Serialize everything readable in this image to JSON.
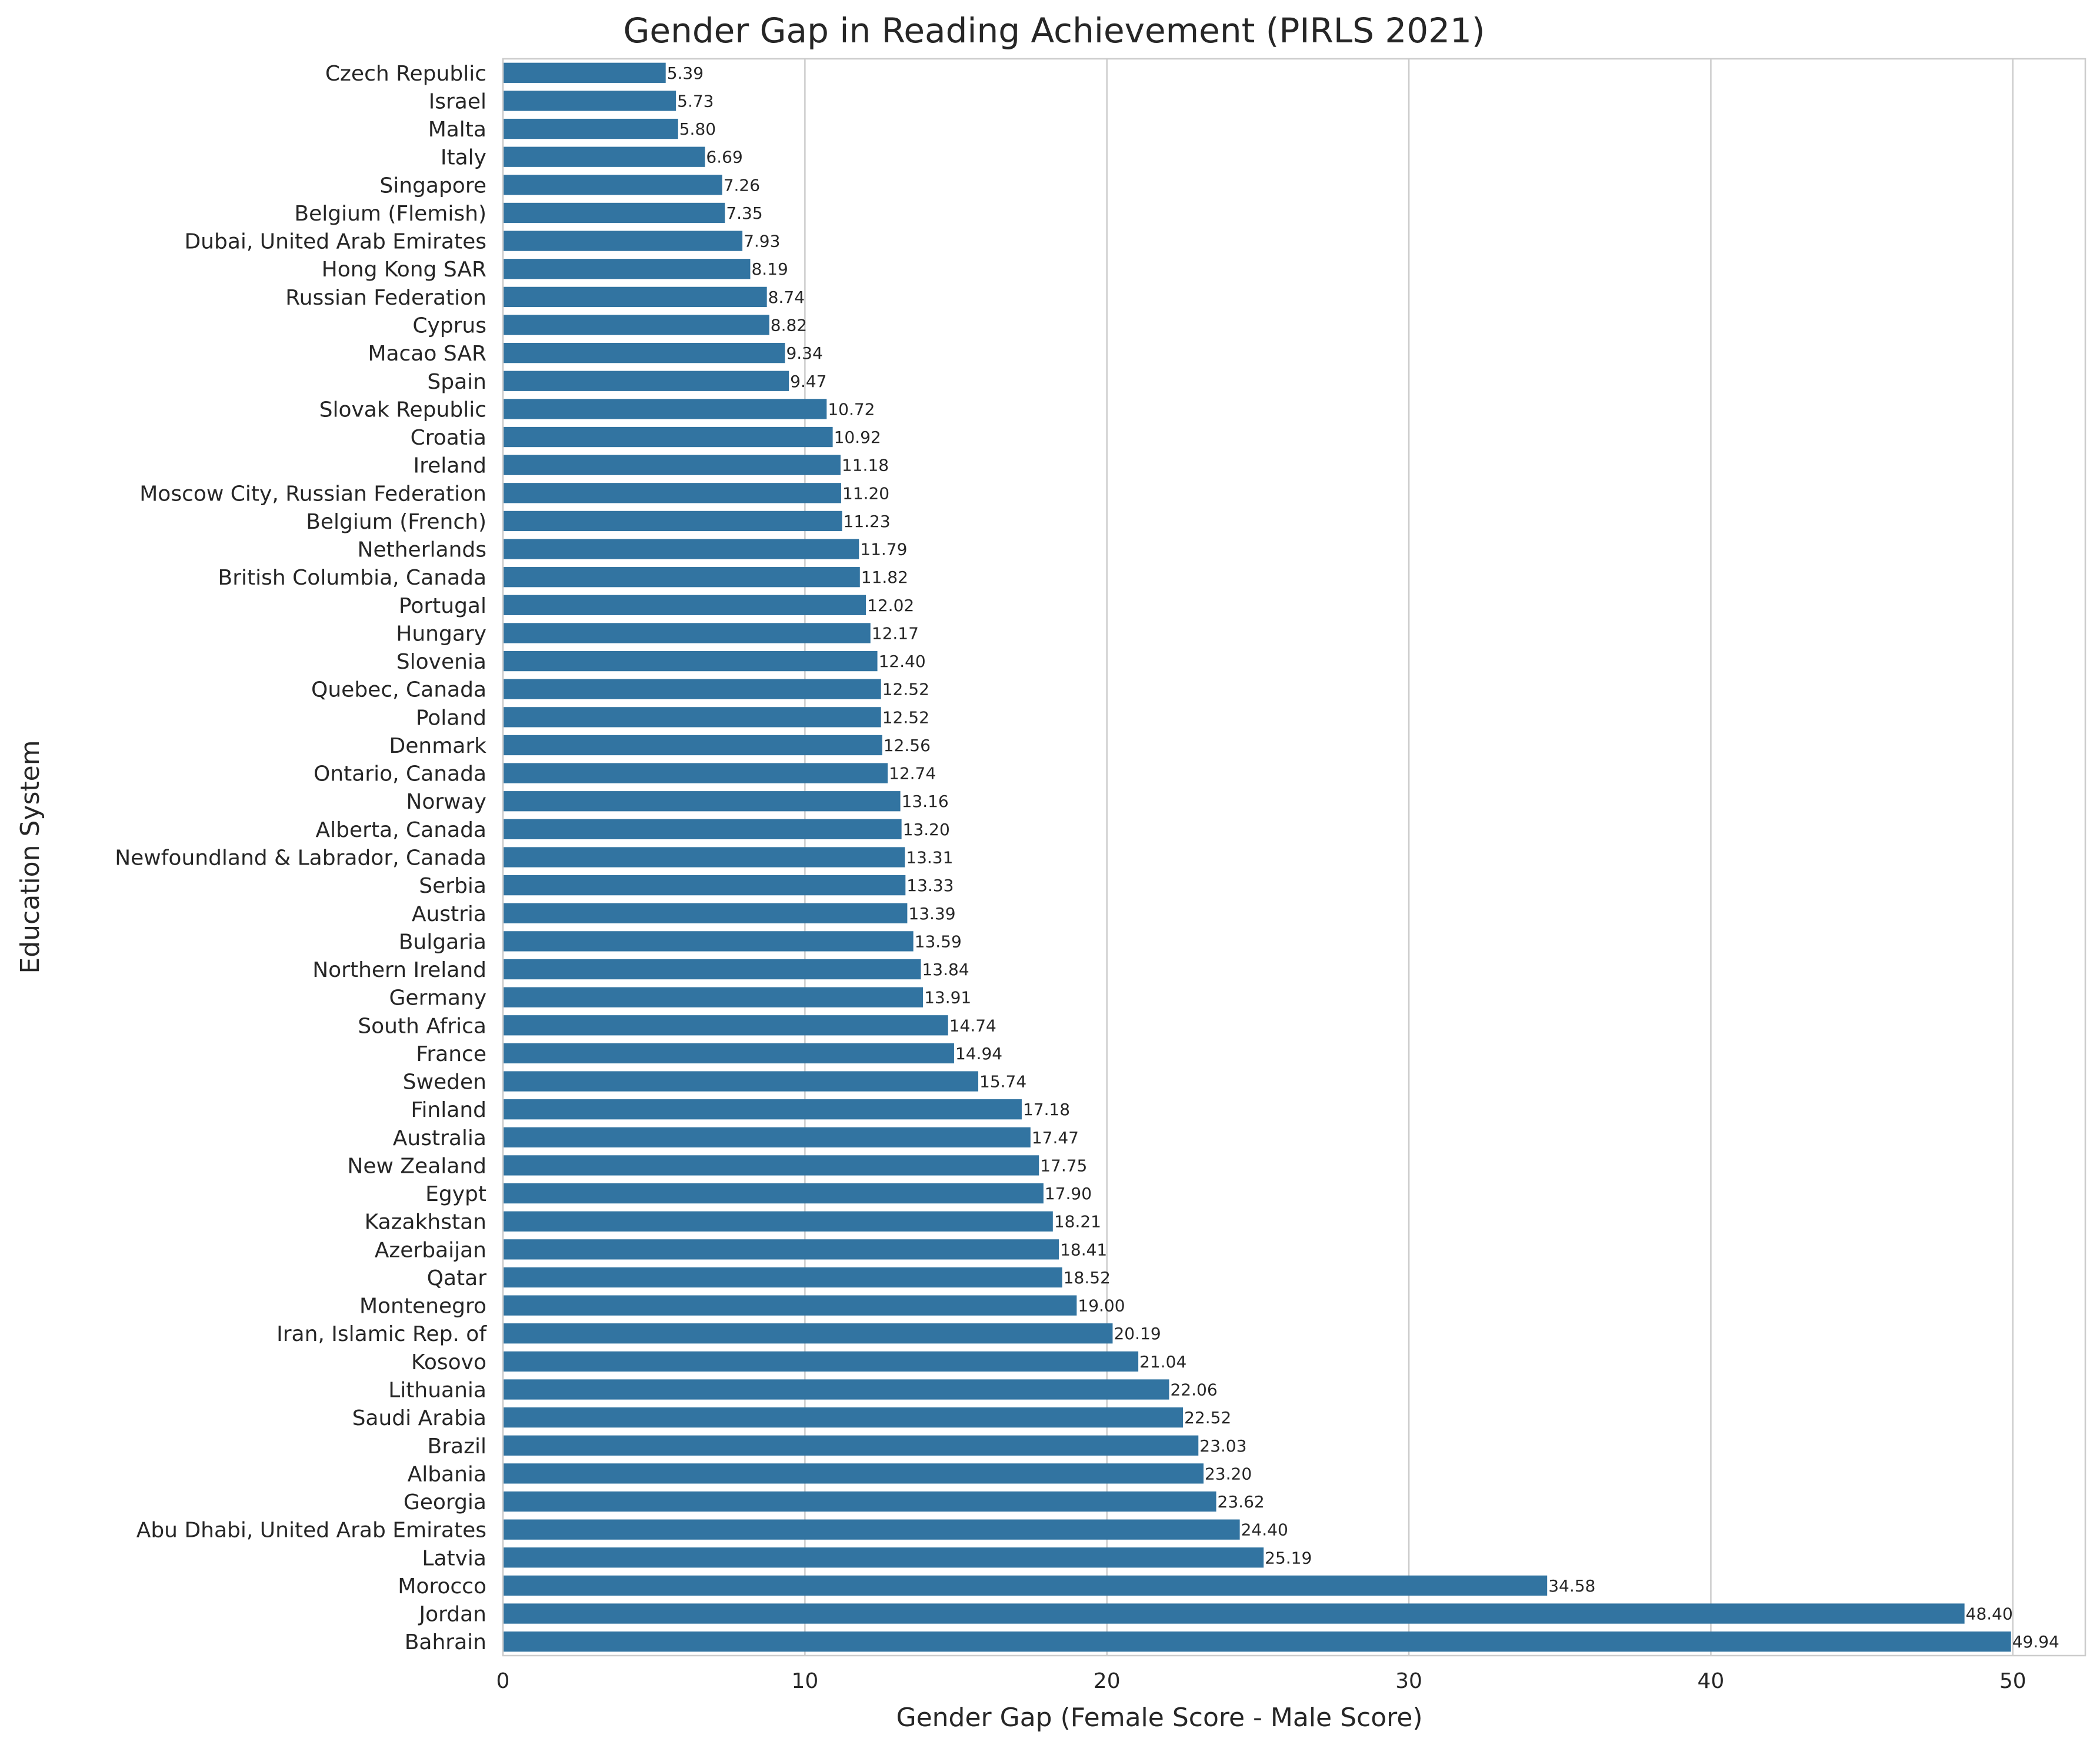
{
  "chart_data": {
    "type": "bar",
    "orientation": "horizontal",
    "title": "Gender Gap in Reading Achievement (PIRLS 2021)",
    "xlabel": "Gender Gap (Female Score - Male Score)",
    "ylabel": "Education System",
    "xlim": [
      0,
      52.4
    ],
    "xticks": [
      0,
      10,
      20,
      30,
      40,
      50
    ],
    "grid": "vertical",
    "bar_color": "#3274a1",
    "categories": [
      "Czech Republic",
      "Israel",
      "Malta",
      "Italy",
      "Singapore",
      "Belgium (Flemish)",
      "Dubai, United Arab Emirates",
      "Hong Kong SAR",
      "Russian Federation",
      "Cyprus",
      "Macao SAR",
      "Spain",
      "Slovak Republic",
      "Croatia",
      "Ireland",
      "Moscow City, Russian Federation",
      "Belgium (French)",
      "Netherlands",
      "British Columbia, Canada",
      "Portugal",
      "Hungary",
      "Slovenia",
      "Quebec, Canada",
      "Poland",
      "Denmark",
      "Ontario, Canada",
      "Norway",
      "Alberta, Canada",
      "Newfoundland & Labrador, Canada",
      "Serbia",
      "Austria",
      "Bulgaria",
      "Northern Ireland",
      "Germany",
      "South Africa",
      "France",
      "Sweden",
      "Finland",
      "Australia",
      "New Zealand",
      "Egypt",
      "Kazakhstan",
      "Azerbaijan",
      "Qatar",
      "Montenegro",
      "Iran, Islamic Rep. of",
      "Kosovo",
      "Lithuania",
      "Saudi Arabia",
      "Brazil",
      "Albania",
      "Georgia",
      "Abu Dhabi, United Arab Emirates",
      "Latvia",
      "Morocco",
      "Jordan",
      "Bahrain"
    ],
    "values": [
      5.39,
      5.73,
      5.8,
      6.69,
      7.26,
      7.35,
      7.93,
      8.19,
      8.74,
      8.82,
      9.34,
      9.47,
      10.72,
      10.92,
      11.18,
      11.2,
      11.23,
      11.79,
      11.82,
      12.02,
      12.17,
      12.4,
      12.52,
      12.52,
      12.56,
      12.74,
      13.16,
      13.2,
      13.31,
      13.33,
      13.39,
      13.59,
      13.84,
      13.91,
      14.74,
      14.94,
      15.74,
      17.18,
      17.47,
      17.75,
      17.9,
      18.21,
      18.41,
      18.52,
      19.0,
      20.19,
      21.04,
      22.06,
      22.52,
      23.03,
      23.2,
      23.62,
      24.4,
      25.19,
      34.58,
      48.4,
      49.94
    ],
    "data_labels": [
      "5.39",
      "5.73",
      "5.80",
      "6.69",
      "7.26",
      "7.35",
      "7.93",
      "8.19",
      "8.74",
      "8.82",
      "9.34",
      "9.47",
      "10.72",
      "10.92",
      "11.18",
      "11.20",
      "11.23",
      "11.79",
      "11.82",
      "12.02",
      "12.17",
      "12.40",
      "12.52",
      "12.52",
      "12.56",
      "12.74",
      "13.16",
      "13.20",
      "13.31",
      "13.33",
      "13.39",
      "13.59",
      "13.84",
      "13.91",
      "14.74",
      "14.94",
      "15.74",
      "17.18",
      "17.47",
      "17.75",
      "17.90",
      "18.21",
      "18.41",
      "18.52",
      "19.00",
      "20.19",
      "21.04",
      "22.06",
      "22.52",
      "23.03",
      "23.20",
      "23.62",
      "24.40",
      "25.19",
      "34.58",
      "48.40",
      "49.94"
    ]
  }
}
